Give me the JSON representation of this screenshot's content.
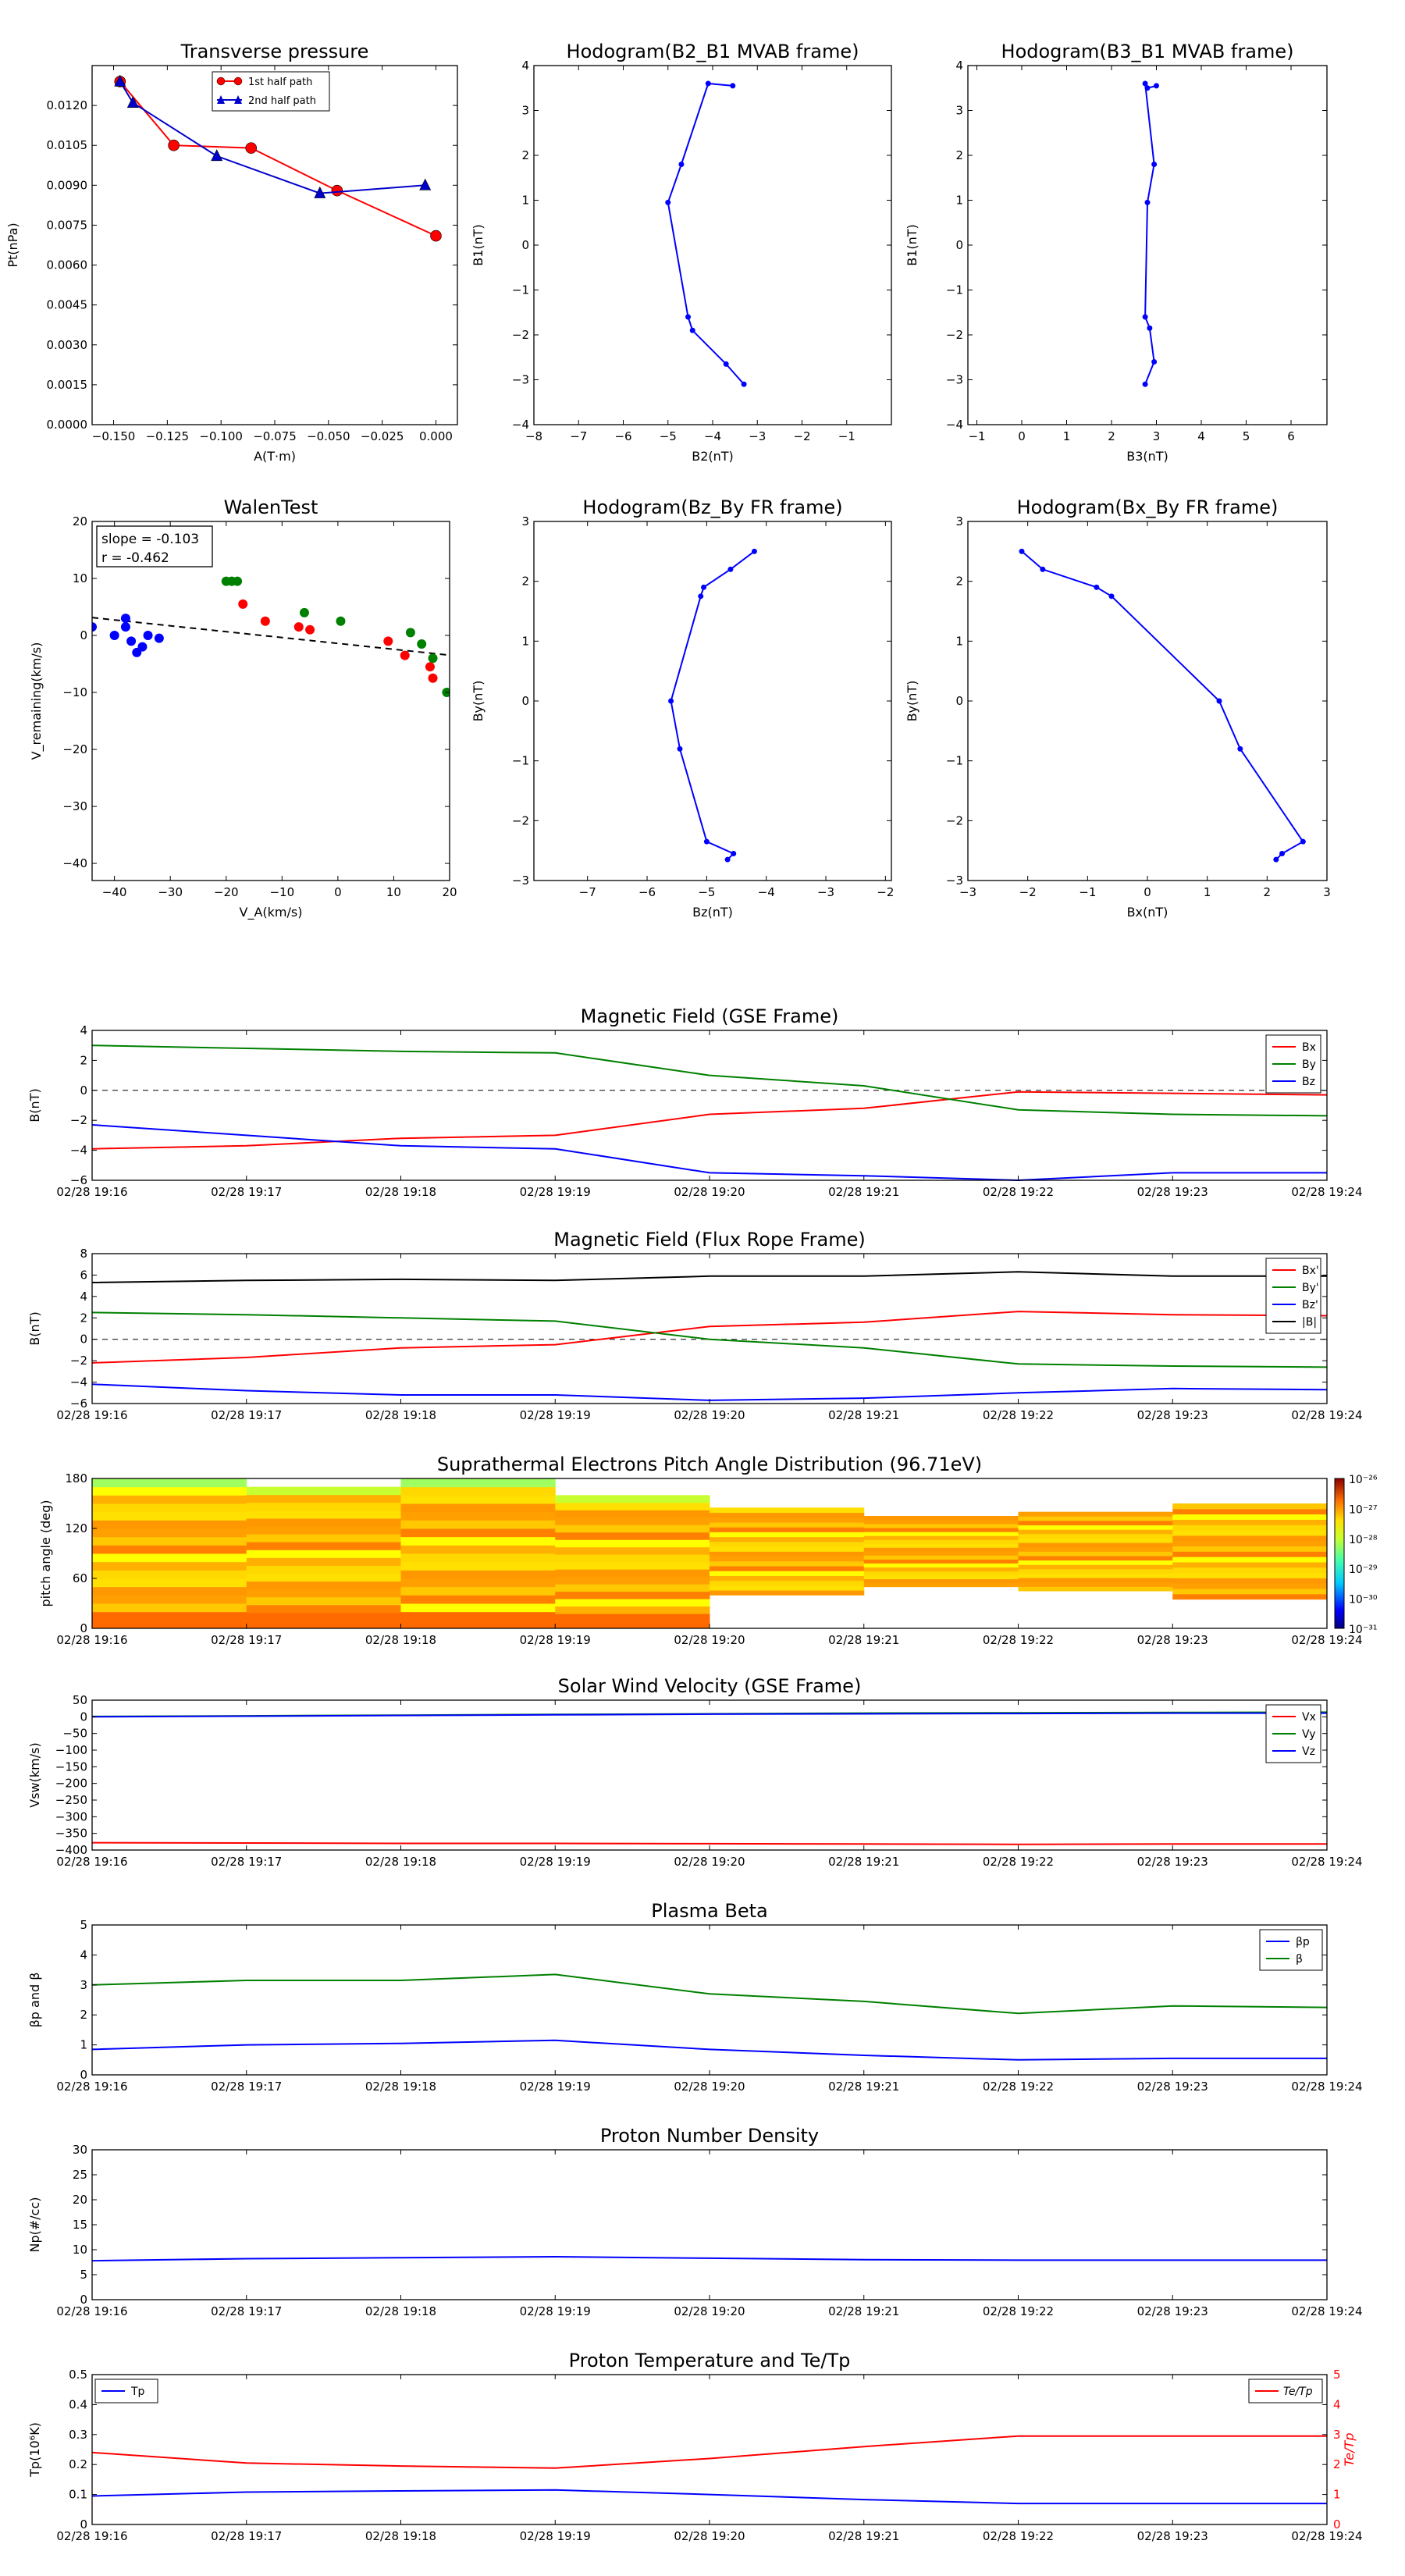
{
  "chart_data": [
    {
      "type": "line",
      "title": "Transverse pressure",
      "xlabel": "A(T·m)",
      "ylabel": "Pt(nPa)",
      "xlim": [
        -0.16,
        0.01
      ],
      "ylim": [
        0,
        0.0135
      ],
      "xticks": [
        -0.15,
        -0.125,
        -0.1,
        -0.075,
        -0.05,
        -0.025,
        0.0
      ],
      "xtick_labels": [
        "−0.150",
        "−0.125",
        "−0.100",
        "−0.075",
        "−0.050",
        "−0.025",
        "0.000"
      ],
      "yticks": [
        0.0,
        0.0015,
        0.003,
        0.0045,
        0.006,
        0.0075,
        0.009,
        0.0105,
        0.012
      ],
      "ytick_labels": [
        "0.0000",
        "0.0015",
        "0.0030",
        "0.0045",
        "0.0060",
        "0.0075",
        "0.0090",
        "0.0105",
        "0.0120"
      ],
      "legend": "upper-center",
      "series": [
        {
          "name": "1st half path",
          "color": "#ff0000",
          "marker": "circle",
          "x": [
            -0.147,
            -0.122,
            -0.086,
            -0.046,
            0.0
          ],
          "y": [
            0.0129,
            0.0105,
            0.0104,
            0.0088,
            0.0071
          ]
        },
        {
          "name": "2nd half path",
          "color": "#0000cc",
          "marker": "triangle",
          "x": [
            -0.147,
            -0.141,
            -0.102,
            -0.054,
            -0.005
          ],
          "y": [
            0.0129,
            0.0121,
            0.0101,
            0.0087,
            0.009
          ]
        }
      ]
    },
    {
      "type": "line",
      "title": "Hodogram(B2_B1 MVAB frame)",
      "xlabel": "B2(nT)",
      "ylabel": "B1(nT)",
      "xlim": [
        -8,
        0
      ],
      "ylim": [
        -4,
        4
      ],
      "xticks": [
        -8,
        -7,
        -6,
        -5,
        -4,
        -3,
        -2,
        -1
      ],
      "yticks": [
        -4,
        -3,
        -2,
        -1,
        0,
        1,
        2,
        3,
        4
      ],
      "series": [
        {
          "color": "#0000ff",
          "x": [
            -3.3,
            -3.7,
            -4.45,
            -4.55,
            -5.0,
            -4.7,
            -4.1,
            -3.55
          ],
          "y": [
            -3.1,
            -2.65,
            -1.9,
            -1.6,
            0.95,
            1.8,
            3.6,
            3.55
          ]
        }
      ]
    },
    {
      "type": "line",
      "title": "Hodogram(B3_B1 MVAB frame)",
      "xlabel": "B3(nT)",
      "ylabel": "B1(nT)",
      "xlim": [
        -1.2,
        6.8
      ],
      "ylim": [
        -4,
        4
      ],
      "xticks": [
        -1,
        0,
        1,
        2,
        3,
        4,
        5,
        6
      ],
      "yticks": [
        -4,
        -3,
        -2,
        -1,
        0,
        1,
        2,
        3,
        4
      ],
      "series": [
        {
          "color": "#0000ff",
          "x": [
            2.75,
            2.95,
            2.85,
            2.75,
            2.8,
            2.95,
            2.75,
            2.8,
            3.0
          ],
          "y": [
            -3.1,
            -2.6,
            -1.85,
            -1.6,
            0.95,
            1.8,
            3.6,
            3.5,
            3.55
          ]
        }
      ]
    },
    {
      "type": "scatter",
      "title": "WalenTest",
      "xlabel": "V_A(km/s)",
      "ylabel": "V_remaining(km/s)",
      "xlim": [
        -44,
        20
      ],
      "ylim": [
        -43,
        20
      ],
      "xticks": [
        -40,
        -30,
        -20,
        -10,
        0,
        10,
        20
      ],
      "yticks": [
        -40,
        -30,
        -20,
        -10,
        0,
        10,
        20
      ],
      "annotation": [
        "slope = -0.103",
        "r = -0.462"
      ],
      "fit_line": {
        "slope": -0.103,
        "intercept": -1.4,
        "color": "#000000",
        "style": "dashed"
      },
      "series": [
        {
          "color": "#0000ff",
          "x": [
            -44,
            -40,
            -38,
            -38,
            -37,
            -36,
            -35,
            -34,
            -32
          ],
          "y": [
            1.5,
            0,
            3,
            1.5,
            -1,
            -3,
            -2,
            0,
            -0.5
          ]
        },
        {
          "color": "#008000",
          "x": [
            -20,
            -19,
            -18,
            -6,
            0.5,
            13,
            15,
            17,
            19.5
          ],
          "y": [
            9.5,
            9.5,
            9.5,
            4,
            2.5,
            0.5,
            -1.5,
            -4,
            -10
          ]
        },
        {
          "color": "#ff0000",
          "x": [
            -17,
            -13,
            -7,
            -5,
            9,
            12,
            16.5,
            17
          ],
          "y": [
            5.5,
            2.5,
            1.5,
            1,
            -1,
            -3.5,
            -5.5,
            -7.5
          ]
        }
      ]
    },
    {
      "type": "line",
      "title": "Hodogram(Bz_By FR frame)",
      "xlabel": "Bz(nT)",
      "ylabel": "By(nT)",
      "xlim": [
        -7.9,
        -1.9
      ],
      "ylim": [
        -3,
        3
      ],
      "xticks": [
        -7,
        -6,
        -5,
        -4,
        -3,
        -2
      ],
      "yticks": [
        -3,
        -2,
        -1,
        0,
        1,
        2,
        3
      ],
      "series": [
        {
          "color": "#0000ff",
          "x": [
            -4.65,
            -4.55,
            -5.0,
            -5.45,
            -5.6,
            -5.1,
            -5.05,
            -4.6,
            -4.2
          ],
          "y": [
            -2.65,
            -2.55,
            -2.35,
            -0.8,
            0.0,
            1.75,
            1.9,
            2.2,
            2.5
          ]
        }
      ]
    },
    {
      "type": "line",
      "title": "Hodogram(Bx_By FR frame)",
      "xlabel": "Bx(nT)",
      "ylabel": "By(nT)",
      "xlim": [
        -3,
        3
      ],
      "ylim": [
        -3,
        3
      ],
      "xticks": [
        -3,
        -2,
        -1,
        0,
        1,
        2,
        3
      ],
      "yticks": [
        -3,
        -2,
        -1,
        0,
        1,
        2,
        3
      ],
      "series": [
        {
          "color": "#0000ff",
          "x": [
            2.15,
            2.25,
            2.6,
            1.55,
            1.2,
            -0.6,
            -0.85,
            -1.75,
            -2.1
          ],
          "y": [
            -2.65,
            -2.55,
            -2.35,
            -0.8,
            0.0,
            1.75,
            1.9,
            2.2,
            2.5
          ]
        }
      ]
    },
    {
      "type": "line",
      "title": "Magnetic Field (GSE Frame)",
      "ylabel": "B(nT)",
      "categories": [
        "02/28 19:16",
        "02/28 19:17",
        "02/28 19:18",
        "02/28 19:19",
        "02/28 19:20",
        "02/28 19:21",
        "02/28 19:22",
        "02/28 19:23",
        "02/28 19:24"
      ],
      "ylim": [
        -6,
        4
      ],
      "yticks": [
        -6,
        -4,
        -2,
        0,
        2,
        4
      ],
      "zero_line": true,
      "legend": "upper-right",
      "series": [
        {
          "name": "Bx",
          "color": "#ff0000",
          "values": [
            -3.9,
            -3.7,
            -3.2,
            -3.0,
            -1.6,
            -1.2,
            -0.1,
            -0.2,
            -0.3
          ]
        },
        {
          "name": "By",
          "color": "#008000",
          "values": [
            3.0,
            2.8,
            2.6,
            2.5,
            1.0,
            0.3,
            -1.3,
            -1.6,
            -1.7
          ]
        },
        {
          "name": "Bz",
          "color": "#0000ff",
          "values": [
            -2.3,
            -3.0,
            -3.7,
            -3.9,
            -5.5,
            -5.7,
            -6.0,
            -5.5,
            -5.5
          ]
        }
      ]
    },
    {
      "type": "line",
      "title": "Magnetic Field (Flux Rope Frame)",
      "ylabel": "B(nT)",
      "categories": [
        "02/28 19:16",
        "02/28 19:17",
        "02/28 19:18",
        "02/28 19:19",
        "02/28 19:20",
        "02/28 19:21",
        "02/28 19:22",
        "02/28 19:23",
        "02/28 19:24"
      ],
      "ylim": [
        -6,
        8
      ],
      "yticks": [
        -6,
        -4,
        -2,
        0,
        2,
        4,
        6,
        8
      ],
      "zero_line": true,
      "legend": "upper-right",
      "series": [
        {
          "name": "Bx'",
          "color": "#ff0000",
          "values": [
            -2.2,
            -1.7,
            -0.8,
            -0.5,
            1.2,
            1.6,
            2.6,
            2.3,
            2.2
          ]
        },
        {
          "name": "By'",
          "color": "#008000",
          "values": [
            2.5,
            2.3,
            2.0,
            1.7,
            0.0,
            -0.8,
            -2.3,
            -2.5,
            -2.6
          ]
        },
        {
          "name": "Bz'",
          "color": "#0000ff",
          "values": [
            -4.2,
            -4.8,
            -5.2,
            -5.2,
            -5.7,
            -5.5,
            -5.0,
            -4.6,
            -4.7
          ]
        },
        {
          "name": "|B|",
          "color": "#000000",
          "values": [
            5.3,
            5.5,
            5.6,
            5.5,
            5.9,
            5.9,
            6.3,
            5.9,
            5.9
          ]
        }
      ]
    },
    {
      "type": "heatmap",
      "title": "Suprathermal Electrons Pitch Angle Distribution (96.71eV)",
      "ylabel": "pitch angle (deg)",
      "categories": [
        "02/28 19:16",
        "02/28 19:17",
        "02/28 19:18",
        "02/28 19:19",
        "02/28 19:20",
        "02/28 19:21",
        "02/28 19:22",
        "02/28 19:23",
        "02/28 19:24"
      ],
      "ylim": [
        0,
        180
      ],
      "yticks": [
        0,
        60,
        120,
        180
      ],
      "colorbar_ticks": [
        "10⁻²⁶",
        "10⁻²⁷",
        "10⁻²⁸",
        "10⁻²⁹",
        "10⁻³⁰",
        "10⁻³¹"
      ],
      "colorbar_exponents": [
        -26,
        -27,
        -28,
        -29,
        -30,
        -31
      ],
      "colorbar_range": [
        -31,
        -26
      ],
      "column_coverage_deg": [
        [
          0,
          180
        ],
        [
          0,
          170
        ],
        [
          0,
          180
        ],
        [
          0,
          160
        ],
        [
          40,
          145
        ],
        [
          50,
          135
        ],
        [
          45,
          140
        ],
        [
          35,
          150
        ]
      ]
    },
    {
      "type": "line",
      "title": "Solar Wind Velocity (GSE Frame)",
      "ylabel": "Vsw(km/s)",
      "categories": [
        "02/28 19:16",
        "02/28 19:17",
        "02/28 19:18",
        "02/28 19:19",
        "02/28 19:20",
        "02/28 19:21",
        "02/28 19:22",
        "02/28 19:23",
        "02/28 19:24"
      ],
      "ylim": [
        -400,
        50
      ],
      "yticks": [
        -400,
        -350,
        -300,
        -250,
        -200,
        -150,
        -100,
        -50,
        0,
        50
      ],
      "legend": "upper-right",
      "series": [
        {
          "name": "Vx",
          "color": "#ff0000",
          "values": [
            -378,
            -379,
            -380,
            -380,
            -381,
            -382,
            -383,
            -382,
            -382
          ]
        },
        {
          "name": "Vy",
          "color": "#008000",
          "values": [
            1,
            3,
            5,
            7,
            9,
            11,
            12,
            13,
            14
          ]
        },
        {
          "name": "Vz",
          "color": "#0000ff",
          "values": [
            0,
            2,
            4,
            6,
            8,
            9,
            10,
            11,
            11
          ]
        }
      ]
    },
    {
      "type": "line",
      "title": "Plasma Beta",
      "ylabel": "βp and β",
      "categories": [
        "02/28 19:16",
        "02/28 19:17",
        "02/28 19:18",
        "02/28 19:19",
        "02/28 19:20",
        "02/28 19:21",
        "02/28 19:22",
        "02/28 19:23",
        "02/28 19:24"
      ],
      "ylim": [
        0,
        5
      ],
      "yticks": [
        0,
        1,
        2,
        3,
        4,
        5
      ],
      "legend": "upper-right",
      "series": [
        {
          "name": "βp",
          "color": "#0000ff",
          "values": [
            0.85,
            1.0,
            1.05,
            1.15,
            0.85,
            0.65,
            0.5,
            0.55,
            0.55
          ]
        },
        {
          "name": "β",
          "color": "#008000",
          "values": [
            3.0,
            3.15,
            3.15,
            3.35,
            2.7,
            2.45,
            2.05,
            2.3,
            2.25
          ]
        }
      ]
    },
    {
      "type": "line",
      "title": "Proton Number Density",
      "ylabel": "Np(#/cc)",
      "categories": [
        "02/28 19:16",
        "02/28 19:17",
        "02/28 19:18",
        "02/28 19:19",
        "02/28 19:20",
        "02/28 19:21",
        "02/28 19:22",
        "02/28 19:23",
        "02/28 19:24"
      ],
      "ylim": [
        0,
        30
      ],
      "yticks": [
        0,
        5,
        10,
        15,
        20,
        25,
        30
      ],
      "series": [
        {
          "color": "#0000ff",
          "values": [
            7.8,
            8.2,
            8.4,
            8.6,
            8.3,
            8.0,
            7.9,
            7.9,
            7.9
          ]
        }
      ]
    },
    {
      "type": "line",
      "title": "Proton Temperature and Te/Tp",
      "ylabel": "Tp(10⁶K)",
      "y2label": "Te/Tp",
      "categories": [
        "02/28 19:16",
        "02/28 19:17",
        "02/28 19:18",
        "02/28 19:19",
        "02/28 19:20",
        "02/28 19:21",
        "02/28 19:22",
        "02/28 19:23",
        "02/28 19:24"
      ],
      "ylim": [
        0,
        0.5
      ],
      "yticks": [
        0,
        0.1,
        0.2,
        0.3,
        0.4,
        0.5
      ],
      "y2lim": [
        0,
        5
      ],
      "y2ticks": [
        0,
        1,
        2,
        3,
        4,
        5
      ],
      "series": [
        {
          "name": "Tp",
          "color": "#0000ff",
          "axis": "left",
          "values": [
            0.095,
            0.108,
            0.112,
            0.115,
            0.1,
            0.083,
            0.07,
            0.07,
            0.07
          ]
        },
        {
          "name": "Te/Tp",
          "color": "#ff0000",
          "axis": "right",
          "values": [
            2.4,
            2.05,
            1.95,
            1.88,
            2.2,
            2.6,
            2.95,
            2.95,
            2.95
          ]
        }
      ]
    }
  ]
}
